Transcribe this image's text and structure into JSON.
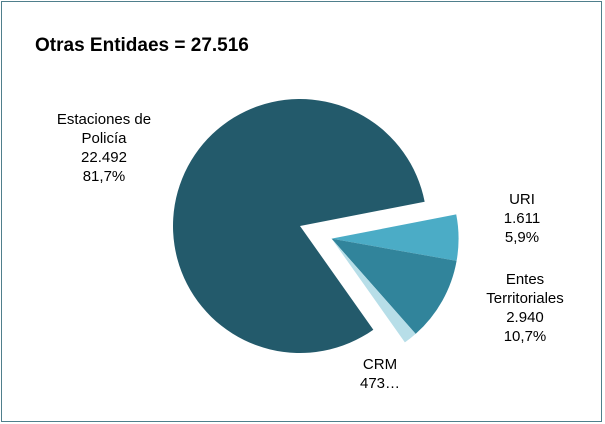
{
  "chart_data": {
    "type": "pie",
    "title": "Otras Entidaes = 27.516",
    "categories": [
      "URI",
      "Entes Territoriales",
      "CRM",
      "Estaciones de Policía"
    ],
    "values": [
      1611,
      2940,
      473,
      22492
    ],
    "value_labels": [
      "1.611",
      "2.940",
      "473…",
      "22.492"
    ],
    "percent_labels": [
      "5,9%",
      "10,7%",
      null,
      "81,7%"
    ],
    "colors": [
      "#4bacc6",
      "#31849b",
      "#b7dee8",
      "#235a6b"
    ],
    "exploded": [
      true,
      true,
      true,
      false
    ]
  }
}
